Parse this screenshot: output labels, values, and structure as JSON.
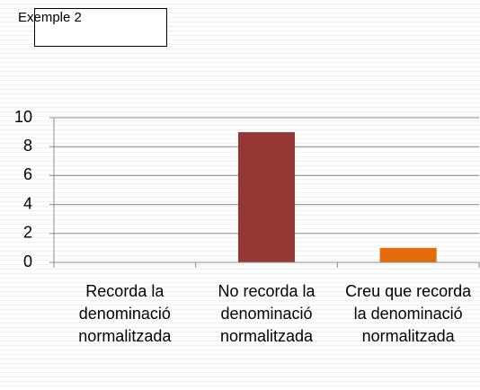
{
  "chart_data": {
    "type": "bar",
    "title": "Exemple 2",
    "categories": [
      "Recorda la denominació normalitzada",
      "No recorda la denominació normalitzada",
      "Creu que recorda la denominació normalitzada"
    ],
    "values": [
      0,
      9,
      1
    ],
    "colors": [
      "#4f81bd",
      "#953735",
      "#e46c0a"
    ],
    "ylim": [
      0,
      10
    ],
    "yticks": [
      0,
      2,
      4,
      6,
      8,
      10
    ],
    "grid": true
  }
}
